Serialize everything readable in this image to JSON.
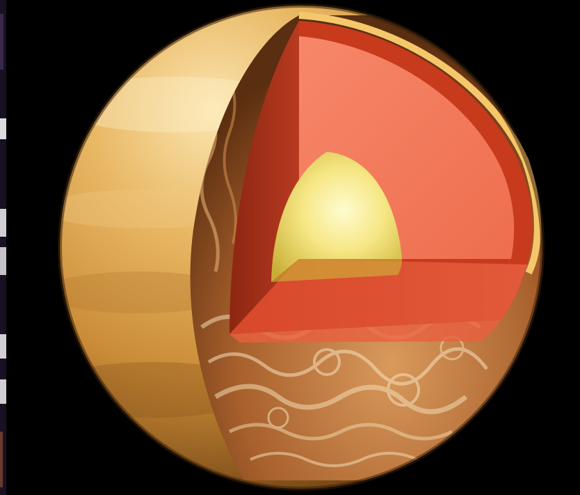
{
  "scene": {
    "subject": "planet-interior-cutaway",
    "background_color": "#000000"
  },
  "colors": {
    "atmosphere_light": "#f6d38a",
    "atmosphere_mid": "#d9a24a",
    "atmosphere_dark": "#7a4a16",
    "crust_surface": "#b8743a",
    "crust_swirl": "#f3dcb4",
    "mantle_face": "#f0785a",
    "mantle_edge": "#c73a1c",
    "wall_dark": "#a8301a",
    "core_light": "#fff6b0",
    "core_mid": "#f2e06a",
    "core_dark": "#c9b03a",
    "edge_strip_light": "#ffffff",
    "edge_strip_dark": "#5a3a6a"
  },
  "layers": [
    "atmosphere",
    "crust",
    "mantle",
    "core"
  ]
}
